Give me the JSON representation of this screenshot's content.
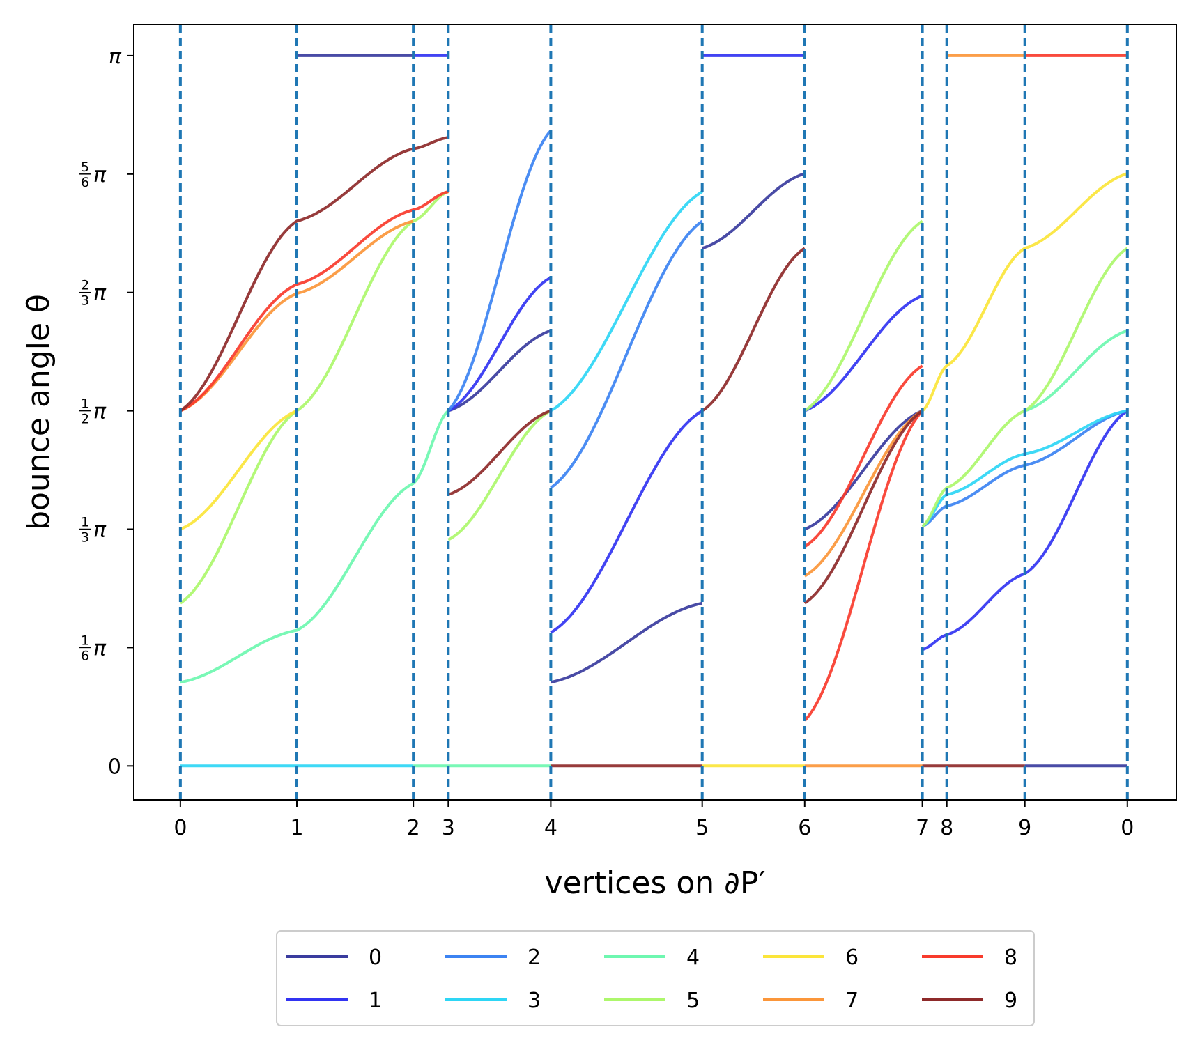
{
  "chart_data": {
    "type": "line",
    "xlabel": "vertices on ∂P′",
    "ylabel": "bounce angle θ",
    "x_vertex_positions": [
      0,
      1,
      2,
      2.3,
      3.18,
      4.48,
      5.36,
      6.37,
      6.58,
      7.25,
      8.13
    ],
    "x_tick_labels": [
      "0",
      "1",
      "2",
      "3",
      "4",
      "5",
      "6",
      "7",
      "8",
      "9",
      "0"
    ],
    "xlim": [
      -0.4,
      8.55
    ],
    "ylim": [
      -0.15,
      3.28
    ],
    "y_ticks": [
      {
        "value": 0,
        "label": "0"
      },
      {
        "value": 0.5236,
        "label": "1/6 π",
        "num": "1",
        "den": "6",
        "sym": "π"
      },
      {
        "value": 1.0472,
        "label": "1/3 π",
        "num": "1",
        "den": "3",
        "sym": "π"
      },
      {
        "value": 1.5708,
        "label": "1/2 π",
        "num": "1",
        "den": "2",
        "sym": "π"
      },
      {
        "value": 2.0944,
        "label": "2/3 π",
        "num": "2",
        "den": "3",
        "sym": "π"
      },
      {
        "value": 2.618,
        "label": "5/6 π",
        "num": "5",
        "den": "6",
        "sym": "π"
      },
      {
        "value": 3.1416,
        "label": "π",
        "sym": "π"
      }
    ],
    "grid": false,
    "vertical_dashed_lines_at_vertices": true,
    "legend_placement": "bottom-center, below plot, 5 columns",
    "series": [
      {
        "name": "0",
        "color": "#3a3c9e",
        "segments": [
          [
            [
              1,
              3.1416
            ],
            [
              2,
              3.1416
            ]
          ],
          [
            [
              2.3,
              1.5708
            ],
            [
              3.18,
              1.925
            ]
          ],
          [
            [
              3.18,
              0.37
            ],
            [
              4.48,
              0.72
            ]
          ],
          [
            [
              4.48,
              2.29
            ],
            [
              5.36,
              2.62
            ]
          ],
          [
            [
              5.36,
              1.047
            ],
            [
              6.37,
              1.5708
            ]
          ],
          [
            [
              7.25,
              0
            ],
            [
              8.13,
              0
            ]
          ]
        ]
      },
      {
        "name": "1",
        "color": "#3234f2",
        "segments": [
          [
            [
              2,
              3.1416
            ],
            [
              2.3,
              3.1416
            ]
          ],
          [
            [
              2.3,
              1.5708
            ],
            [
              3.18,
              2.16
            ]
          ],
          [
            [
              3.18,
              0.59
            ],
            [
              4.48,
              1.5708
            ]
          ],
          [
            [
              4.48,
              3.1416
            ],
            [
              5.36,
              3.1416
            ]
          ],
          [
            [
              5.36,
              1.5708
            ],
            [
              6.37,
              2.08
            ]
          ],
          [
            [
              6.37,
              0.515
            ],
            [
              6.58,
              0.58
            ],
            [
              7.25,
              0.85
            ],
            [
              8.13,
              1.5708
            ]
          ]
        ]
      },
      {
        "name": "2",
        "color": "#3c83f2",
        "segments": [
          [
            [
              2.3,
              1.5708
            ],
            [
              3.18,
              2.81
            ]
          ],
          [
            [
              3.18,
              1.23
            ],
            [
              4.48,
              2.41
            ]
          ],
          [
            [
              6.37,
              1.06
            ],
            [
              6.58,
              1.15
            ],
            [
              7.25,
              1.33
            ],
            [
              8.13,
              1.5708
            ]
          ]
        ]
      },
      {
        "name": "3",
        "color": "#2ed6f5",
        "segments": [
          [
            [
              0,
              0
            ],
            [
              2,
              0
            ]
          ],
          [
            [
              3.18,
              1.5708
            ],
            [
              4.48,
              2.54
            ]
          ],
          [
            [
              6.37,
              1.06
            ],
            [
              6.58,
              1.2
            ],
            [
              7.25,
              1.38
            ],
            [
              8.13,
              1.5708
            ]
          ]
        ]
      },
      {
        "name": "4",
        "color": "#6ef7b0",
        "segments": [
          [
            [
              0,
              0.37
            ],
            [
              1,
              0.6
            ],
            [
              2,
              1.25
            ],
            [
              2.3,
              1.5708
            ]
          ],
          [
            [
              2,
              0
            ],
            [
              3.18,
              0
            ]
          ],
          [
            [
              7.25,
              1.5708
            ],
            [
              8.13,
              1.925
            ]
          ]
        ]
      },
      {
        "name": "5",
        "color": "#adf76c",
        "segments": [
          [
            [
              0,
              0.72
            ],
            [
              1,
              1.5708
            ],
            [
              2,
              2.41
            ],
            [
              2.3,
              2.54
            ]
          ],
          [
            [
              2.3,
              1.0
            ],
            [
              3.18,
              1.5708
            ]
          ],
          [
            [
              5.36,
              1.5708
            ],
            [
              6.37,
              2.41
            ]
          ],
          [
            [
              6.37,
              1.06
            ],
            [
              6.58,
              1.23
            ],
            [
              7.25,
              1.5708
            ],
            [
              8.13,
              2.29
            ]
          ]
        ]
      },
      {
        "name": "6",
        "color": "#fbe53a",
        "segments": [
          [
            [
              0,
              1.047
            ],
            [
              1,
              1.5708
            ]
          ],
          [
            [
              4.48,
              0
            ],
            [
              5.36,
              0
            ]
          ],
          [
            [
              6.37,
              1.5708
            ],
            [
              6.58,
              1.77
            ],
            [
              7.25,
              2.29
            ],
            [
              8.13,
              2.62
            ]
          ]
        ]
      },
      {
        "name": "7",
        "color": "#fb963a",
        "segments": [
          [
            [
              0,
              1.5708
            ],
            [
              1,
              2.09
            ],
            [
              2,
              2.41
            ]
          ],
          [
            [
              5.36,
              0.84
            ],
            [
              6.37,
              1.5708
            ]
          ],
          [
            [
              5.36,
              0
            ],
            [
              6.37,
              0
            ]
          ],
          [
            [
              6.58,
              3.1416
            ],
            [
              7.25,
              3.1416
            ]
          ]
        ]
      },
      {
        "name": "8",
        "color": "#f83b2c",
        "segments": [
          [
            [
              0,
              1.5708
            ],
            [
              1,
              2.13
            ],
            [
              2,
              2.46
            ],
            [
              2.3,
              2.54
            ]
          ],
          [
            [
              5.36,
              0.97
            ],
            [
              6.37,
              1.77
            ]
          ],
          [
            [
              5.36,
              0.2
            ],
            [
              6.37,
              1.5708
            ]
          ],
          [
            [
              7.25,
              3.1416
            ],
            [
              8.13,
              3.1416
            ]
          ]
        ]
      },
      {
        "name": "9",
        "color": "#8e2a2a",
        "segments": [
          [
            [
              0,
              1.5708
            ],
            [
              1,
              2.41
            ],
            [
              2,
              2.73
            ],
            [
              2.3,
              2.78
            ]
          ],
          [
            [
              2.3,
              1.2
            ],
            [
              3.18,
              1.5708
            ]
          ],
          [
            [
              3.18,
              0
            ],
            [
              4.48,
              0
            ]
          ],
          [
            [
              4.48,
              1.5708
            ],
            [
              5.36,
              2.29
            ]
          ],
          [
            [
              5.36,
              0.72
            ],
            [
              6.37,
              1.5708
            ]
          ],
          [
            [
              6.37,
              0
            ],
            [
              7.25,
              0
            ]
          ]
        ]
      }
    ]
  }
}
